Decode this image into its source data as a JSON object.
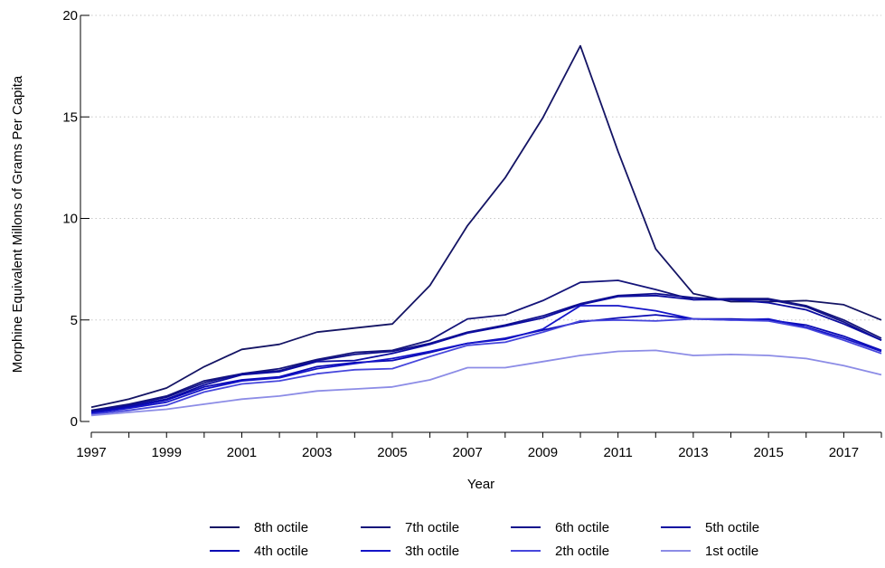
{
  "chart_data": {
    "type": "line",
    "title": "",
    "xlabel": "Year",
    "ylabel": "Morphine Equivalent Millons of Grams Per Capita",
    "xlim": [
      1997,
      2018
    ],
    "ylim": [
      0,
      20
    ],
    "xticks": [
      "1997",
      "1999",
      "2001",
      "2003",
      "2005",
      "2007",
      "2009",
      "2011",
      "2013",
      "2015",
      "2017"
    ],
    "yticks": [
      "0",
      "5",
      "10",
      "15",
      "20"
    ],
    "grid": true,
    "legend_position": "bottom",
    "x": [
      1997,
      1998,
      1999,
      2000,
      2001,
      2002,
      2003,
      2004,
      2005,
      2006,
      2007,
      2008,
      2009,
      2010,
      2011,
      2012,
      2013,
      2014,
      2015,
      2016,
      2017,
      2018
    ],
    "series": [
      {
        "name": "8th octile",
        "color": "#141464",
        "values": [
          0.7,
          1.1,
          1.65,
          2.7,
          3.55,
          3.8,
          4.4,
          4.6,
          4.8,
          6.7,
          9.65,
          12.0,
          14.95,
          18.5,
          13.3,
          8.5,
          6.3,
          5.9,
          5.9,
          5.95,
          5.75,
          5.0
        ]
      },
      {
        "name": "7th octile",
        "color": "#14147a",
        "values": [
          0.55,
          0.85,
          1.25,
          2.0,
          2.35,
          2.6,
          3.05,
          3.4,
          3.5,
          4.0,
          5.05,
          5.25,
          5.95,
          6.85,
          6.95,
          6.5,
          6.0,
          6.05,
          6.05,
          5.7,
          5.0,
          4.1
        ]
      },
      {
        "name": "6th octile",
        "color": "#10108c",
        "values": [
          0.5,
          0.8,
          1.2,
          1.9,
          2.35,
          2.5,
          3.0,
          3.3,
          3.45,
          3.85,
          4.4,
          4.75,
          5.2,
          5.8,
          6.2,
          6.3,
          6.1,
          6.0,
          6.0,
          5.65,
          4.9,
          4.0
        ]
      },
      {
        "name": "5th octile",
        "color": "#0c0ca0",
        "values": [
          0.48,
          0.75,
          1.1,
          1.8,
          2.3,
          2.45,
          2.95,
          3.0,
          3.35,
          3.8,
          4.35,
          4.7,
          5.1,
          5.75,
          6.15,
          6.2,
          6.0,
          6.0,
          5.85,
          5.5,
          4.8,
          4.0
        ]
      },
      {
        "name": "4th octile",
        "color": "#0a0ab4",
        "values": [
          0.45,
          0.7,
          1.05,
          1.7,
          2.05,
          2.2,
          2.7,
          2.9,
          3.0,
          3.4,
          3.85,
          4.1,
          4.5,
          4.9,
          5.1,
          5.25,
          5.05,
          5.05,
          5.0,
          4.75,
          4.2,
          3.5
        ]
      },
      {
        "name": "3th octile",
        "color": "#1414c8",
        "values": [
          0.4,
          0.65,
          0.95,
          1.6,
          2.0,
          2.15,
          2.6,
          2.85,
          3.1,
          3.45,
          3.85,
          4.05,
          4.55,
          5.7,
          5.7,
          5.45,
          5.05,
          5.0,
          5.05,
          4.65,
          4.1,
          3.45
        ]
      },
      {
        "name": "2th octile",
        "color": "#4646dc",
        "values": [
          0.35,
          0.55,
          0.8,
          1.45,
          1.85,
          2.0,
          2.35,
          2.55,
          2.6,
          3.2,
          3.75,
          3.9,
          4.4,
          4.95,
          5.0,
          4.95,
          5.05,
          5.0,
          4.95,
          4.6,
          4.0,
          3.35
        ]
      },
      {
        "name": "1st octile",
        "color": "#8c8ce6",
        "values": [
          0.3,
          0.45,
          0.6,
          0.85,
          1.1,
          1.25,
          1.5,
          1.6,
          1.7,
          2.05,
          2.65,
          2.65,
          2.95,
          3.25,
          3.45,
          3.5,
          3.25,
          3.3,
          3.25,
          3.1,
          2.75,
          2.3
        ]
      }
    ]
  }
}
